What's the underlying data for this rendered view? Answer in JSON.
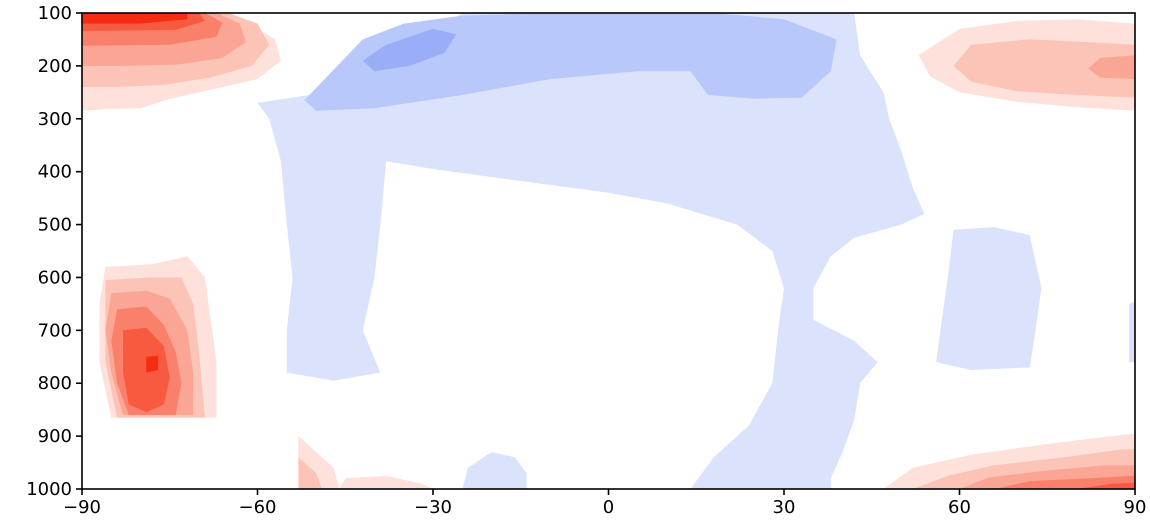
{
  "chart_data": {
    "type": "heatmap",
    "title": "",
    "xlabel": "",
    "ylabel": "",
    "xlim": [
      -90,
      90
    ],
    "ylim": [
      1000,
      100
    ],
    "x_ticks": [
      -90,
      -60,
      -30,
      0,
      30,
      60,
      90
    ],
    "x_tick_labels": [
      "−90",
      "−60",
      "−30",
      "0",
      "30",
      "60",
      "90"
    ],
    "y_ticks": [
      100,
      200,
      300,
      400,
      500,
      600,
      700,
      800,
      900,
      1000
    ],
    "y_tick_labels": [
      "100",
      "200",
      "300",
      "400",
      "500",
      "600",
      "700",
      "800",
      "900",
      "1000"
    ],
    "grid": false,
    "colormap": "diverging blue-white-red",
    "colors": {
      "neg1": "#dae2fc",
      "neg2": "#b8c8fb",
      "neg3": "#9aaef8",
      "pos1": "#fde1da",
      "pos2": "#fcc4b7",
      "pos3": "#fba594",
      "pos4": "#f9806b",
      "pos5": "#f75a3f",
      "pos6": "#f42c11"
    },
    "regions": [
      {
        "level": "pos1",
        "points": [
          [
            -90,
            100
          ],
          [
            -78,
            100
          ],
          [
            -70,
            100
          ],
          [
            -63,
            110
          ],
          [
            -57,
            150
          ],
          [
            -56,
            190
          ],
          [
            -60,
            225
          ],
          [
            -68,
            245
          ],
          [
            -75,
            262
          ],
          [
            -80,
            280
          ],
          [
            -86,
            282
          ],
          [
            -90,
            285
          ]
        ]
      },
      {
        "level": "pos2",
        "points": [
          [
            -90,
            100
          ],
          [
            -65,
            100
          ],
          [
            -60,
            120
          ],
          [
            -58,
            160
          ],
          [
            -61,
            200
          ],
          [
            -68,
            222
          ],
          [
            -76,
            236
          ],
          [
            -84,
            240
          ],
          [
            -90,
            240
          ]
        ]
      },
      {
        "level": "pos3",
        "points": [
          [
            -90,
            100
          ],
          [
            -67,
            100
          ],
          [
            -63,
            120
          ],
          [
            -62,
            155
          ],
          [
            -66,
            185
          ],
          [
            -74,
            198
          ],
          [
            -84,
            200
          ],
          [
            -90,
            200
          ]
        ]
      },
      {
        "level": "pos4",
        "points": [
          [
            -90,
            100
          ],
          [
            -69,
            100
          ],
          [
            -66,
            118
          ],
          [
            -67,
            145
          ],
          [
            -75,
            160
          ],
          [
            -90,
            162
          ]
        ]
      },
      {
        "level": "pos5",
        "points": [
          [
            -90,
            100
          ],
          [
            -70,
            100
          ],
          [
            -69,
            115
          ],
          [
            -74,
            132
          ],
          [
            -90,
            134
          ]
        ]
      },
      {
        "level": "pos6",
        "points": [
          [
            -90,
            100
          ],
          [
            -72,
            100
          ],
          [
            -72,
            112
          ],
          [
            -80,
            120
          ],
          [
            -90,
            120
          ]
        ]
      },
      {
        "level": "pos1",
        "points": [
          [
            -86,
            580
          ],
          [
            -78,
            575
          ],
          [
            -72,
            560
          ],
          [
            -69,
            600
          ],
          [
            -68,
            680
          ],
          [
            -67,
            760
          ],
          [
            -67,
            865
          ],
          [
            -85,
            865
          ],
          [
            -87,
            760
          ],
          [
            -87,
            650
          ]
        ]
      },
      {
        "level": "pos2",
        "points": [
          [
            -86,
            605
          ],
          [
            -78,
            600
          ],
          [
            -73,
            600
          ],
          [
            -71,
            650
          ],
          [
            -70,
            740
          ],
          [
            -69,
            865
          ],
          [
            -84,
            865
          ],
          [
            -86,
            760
          ],
          [
            -86,
            680
          ]
        ]
      },
      {
        "level": "pos3",
        "points": [
          [
            -85,
            630
          ],
          [
            -79,
            625
          ],
          [
            -75,
            640
          ],
          [
            -72,
            700
          ],
          [
            -71,
            780
          ],
          [
            -71,
            860
          ],
          [
            -83,
            860
          ],
          [
            -85,
            780
          ],
          [
            -86,
            700
          ]
        ]
      },
      {
        "level": "pos4",
        "points": [
          [
            -84,
            660
          ],
          [
            -79,
            655
          ],
          [
            -76,
            690
          ],
          [
            -74,
            740
          ],
          [
            -73,
            800
          ],
          [
            -74,
            860
          ],
          [
            -82,
            860
          ],
          [
            -84,
            800
          ],
          [
            -85,
            720
          ]
        ]
      },
      {
        "level": "pos5",
        "points": [
          [
            -83,
            700
          ],
          [
            -79,
            695
          ],
          [
            -76,
            730
          ],
          [
            -75,
            790
          ],
          [
            -76,
            840
          ],
          [
            -79,
            855
          ],
          [
            -82,
            840
          ],
          [
            -83,
            780
          ]
        ]
      },
      {
        "level": "pos6",
        "points": [
          [
            -79,
            750
          ],
          [
            -77,
            748
          ],
          [
            -77,
            775
          ],
          [
            -79,
            780
          ]
        ]
      },
      {
        "level": "pos1",
        "points": [
          [
            -53,
            900
          ],
          [
            -50,
            930
          ],
          [
            -47,
            960
          ],
          [
            -46,
            1000
          ],
          [
            -53,
            1000
          ]
        ]
      },
      {
        "level": "pos2",
        "points": [
          [
            -53,
            940
          ],
          [
            -50,
            970
          ],
          [
            -49,
            1000
          ],
          [
            -53,
            1000
          ]
        ]
      },
      {
        "level": "pos1",
        "points": [
          [
            -45,
            980
          ],
          [
            -38,
            975
          ],
          [
            -32,
            990
          ],
          [
            -30,
            1000
          ],
          [
            -46,
            1000
          ]
        ]
      },
      {
        "level": "pos1",
        "points": [
          [
            60,
            130
          ],
          [
            70,
            115
          ],
          [
            80,
            112
          ],
          [
            90,
            120
          ],
          [
            90,
            285
          ],
          [
            80,
            278
          ],
          [
            70,
            268
          ],
          [
            60,
            250
          ],
          [
            55,
            220
          ],
          [
            53,
            180
          ]
        ]
      },
      {
        "level": "pos2",
        "points": [
          [
            62,
            160
          ],
          [
            72,
            150
          ],
          [
            82,
            155
          ],
          [
            90,
            160
          ],
          [
            90,
            260
          ],
          [
            80,
            255
          ],
          [
            70,
            248
          ],
          [
            62,
            230
          ],
          [
            59,
            200
          ]
        ]
      },
      {
        "level": "pos3",
        "points": [
          [
            84,
            185
          ],
          [
            90,
            180
          ],
          [
            90,
            225
          ],
          [
            84,
            222
          ],
          [
            82,
            205
          ]
        ]
      },
      {
        "level": "pos1",
        "points": [
          [
            47,
            1000
          ],
          [
            52,
            960
          ],
          [
            62,
            935
          ],
          [
            75,
            915
          ],
          [
            86,
            900
          ],
          [
            90,
            895
          ],
          [
            90,
            1000
          ]
        ]
      },
      {
        "level": "pos2",
        "points": [
          [
            52,
            1000
          ],
          [
            58,
            975
          ],
          [
            66,
            955
          ],
          [
            78,
            940
          ],
          [
            88,
            925
          ],
          [
            90,
            925
          ],
          [
            90,
            1000
          ]
        ]
      },
      {
        "level": "pos3",
        "points": [
          [
            60,
            1000
          ],
          [
            65,
            978
          ],
          [
            75,
            965
          ],
          [
            85,
            955
          ],
          [
            90,
            955
          ],
          [
            90,
            1000
          ]
        ]
      },
      {
        "level": "pos4",
        "points": [
          [
            66,
            1000
          ],
          [
            72,
            985
          ],
          [
            82,
            980
          ],
          [
            90,
            975
          ],
          [
            90,
            1000
          ]
        ]
      },
      {
        "level": "pos5",
        "points": [
          [
            80,
            1000
          ],
          [
            86,
            990
          ],
          [
            90,
            988
          ],
          [
            90,
            1000
          ]
        ]
      },
      {
        "level": "neg1",
        "points": [
          [
            -25,
            100
          ],
          [
            -10,
            100
          ],
          [
            10,
            100
          ],
          [
            30,
            100
          ],
          [
            42,
            100
          ],
          [
            43,
            180
          ],
          [
            47,
            250
          ],
          [
            48,
            300
          ],
          [
            50,
            360
          ],
          [
            52,
            430
          ],
          [
            54,
            480
          ],
          [
            50,
            500
          ],
          [
            42,
            525
          ],
          [
            38,
            560
          ],
          [
            35,
            620
          ],
          [
            35,
            680
          ],
          [
            42,
            720
          ],
          [
            46,
            760
          ],
          [
            43,
            800
          ],
          [
            42,
            870
          ],
          [
            40,
            930
          ],
          [
            38,
            980
          ],
          [
            38,
            1000
          ],
          [
            14,
            1000
          ],
          [
            18,
            940
          ],
          [
            24,
            880
          ],
          [
            28,
            800
          ],
          [
            29,
            700
          ],
          [
            30,
            620
          ],
          [
            28,
            550
          ],
          [
            22,
            500
          ],
          [
            10,
            460
          ],
          [
            0,
            440
          ],
          [
            -10,
            425
          ],
          [
            -20,
            410
          ],
          [
            -30,
            395
          ],
          [
            -38,
            380
          ],
          [
            -39,
            500
          ],
          [
            -40,
            600
          ],
          [
            -42,
            700
          ],
          [
            -39,
            780
          ],
          [
            -47,
            795
          ],
          [
            -55,
            780
          ],
          [
            -55,
            700
          ],
          [
            -54,
            600
          ],
          [
            -55,
            500
          ],
          [
            -56,
            380
          ],
          [
            -58,
            300
          ],
          [
            -60,
            270
          ],
          [
            -48,
            250
          ],
          [
            -40,
            210
          ],
          [
            -32,
            150
          ]
        ]
      },
      {
        "level": "neg2",
        "points": [
          [
            -42,
            150
          ],
          [
            -35,
            120
          ],
          [
            -25,
            105
          ],
          [
            -10,
            100
          ],
          [
            0,
            100
          ],
          [
            18,
            100
          ],
          [
            30,
            112
          ],
          [
            39,
            150
          ],
          [
            38,
            210
          ],
          [
            33,
            260
          ],
          [
            25,
            262
          ],
          [
            17,
            255
          ],
          [
            14,
            210
          ],
          [
            5,
            210
          ],
          [
            -10,
            225
          ],
          [
            -25,
            255
          ],
          [
            -40,
            280
          ],
          [
            -50,
            285
          ],
          [
            -52,
            265
          ]
        ]
      },
      {
        "level": "neg3",
        "points": [
          [
            -42,
            190
          ],
          [
            -38,
            160
          ],
          [
            -30,
            130
          ],
          [
            -26,
            140
          ],
          [
            -28,
            175
          ],
          [
            -34,
            200
          ],
          [
            -40,
            210
          ]
        ]
      },
      {
        "level": "neg1",
        "points": [
          [
            59,
            510
          ],
          [
            66,
            505
          ],
          [
            72,
            520
          ],
          [
            74,
            620
          ],
          [
            73,
            700
          ],
          [
            72,
            770
          ],
          [
            62,
            775
          ],
          [
            56,
            760
          ],
          [
            57,
            680
          ],
          [
            58,
            600
          ]
        ]
      },
      {
        "level": "neg1",
        "points": [
          [
            -25,
            1000
          ],
          [
            -24,
            960
          ],
          [
            -20,
            930
          ],
          [
            -16,
            940
          ],
          [
            -14,
            970
          ],
          [
            -14,
            1000
          ]
        ]
      },
      {
        "level": "neg1",
        "points": [
          [
            89,
            650
          ],
          [
            90,
            645
          ],
          [
            90,
            760
          ],
          [
            89,
            760
          ]
        ]
      }
    ]
  }
}
